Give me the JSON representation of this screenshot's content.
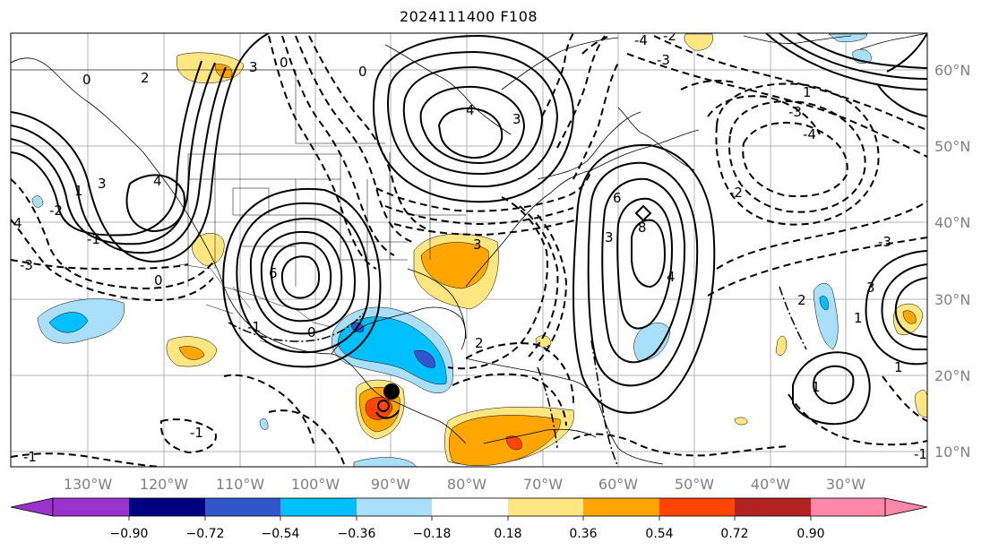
{
  "title": "2024111400 F108",
  "map": {
    "lon_labels": [
      "130°W",
      "120°W",
      "110°W",
      "100°W",
      "90°W",
      "80°W",
      "70°W",
      "60°W",
      "50°W",
      "40°W",
      "30°W"
    ],
    "lat_labels": [
      "60°N",
      "50°N",
      "40°N",
      "30°N",
      "20°N",
      "10°N"
    ],
    "contour_labels": [
      "4",
      "0",
      "2",
      "3",
      "0",
      "4",
      "6",
      "3",
      "0",
      "4",
      "3",
      "1",
      "3",
      "-2",
      "-4",
      "-3",
      "0",
      "1",
      "-3",
      "-1",
      "-1",
      "-3",
      "-2",
      "-1",
      "3",
      "6",
      "8",
      "4",
      "-2",
      "-4",
      "3",
      "2",
      "-3",
      "-1",
      "0",
      "1",
      "1",
      "2",
      "1",
      "-1"
    ],
    "tick_color": "#808080"
  },
  "colorbar": {
    "labels": [
      "−0.90",
      "−0.72",
      "−0.54",
      "−0.36",
      "−0.18",
      "0.18",
      "0.36",
      "0.54",
      "0.72",
      "0.90"
    ],
    "colors": [
      "#9933cc",
      "#000080",
      "#3355cc",
      "#00bfff",
      "#aadff9",
      "#ffffff",
      "#ffe680",
      "#ffa500",
      "#ff4500",
      "#b22222",
      "#ff88aa"
    ]
  }
}
